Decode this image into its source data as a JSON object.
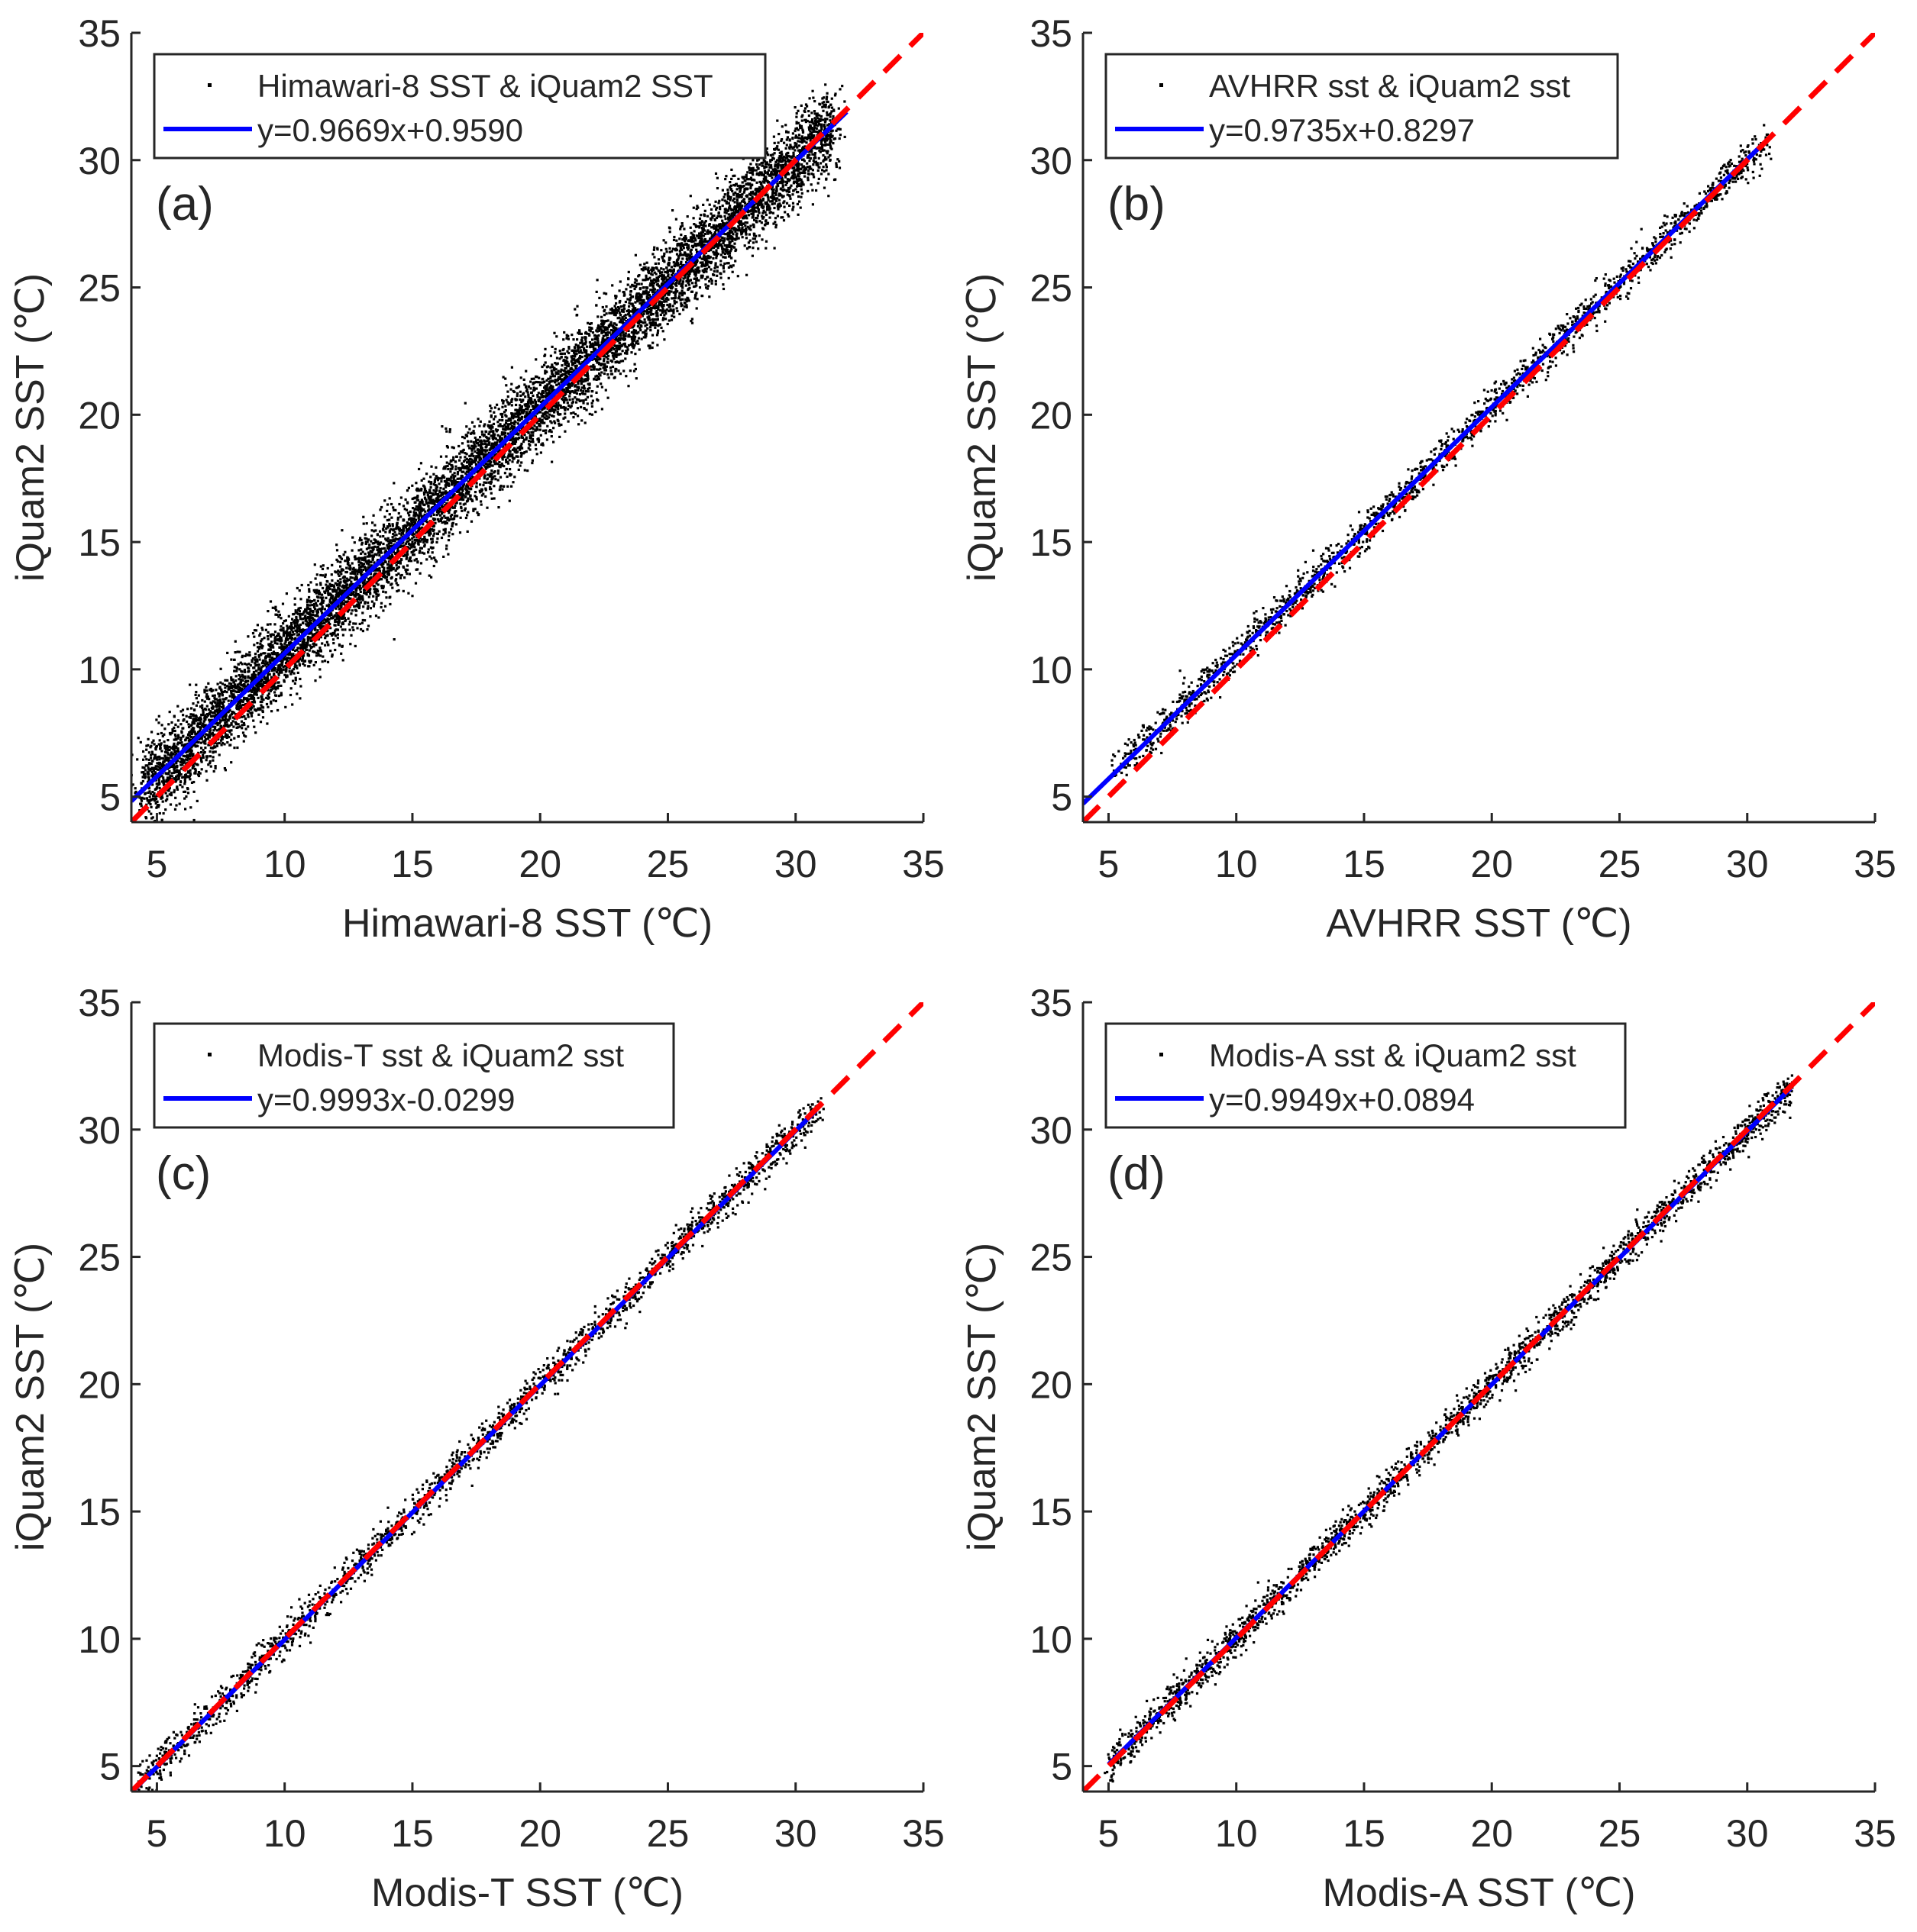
{
  "figure": {
    "description_text": "",
    "colors": {
      "points": "#000000",
      "fit_line": "#0000FF",
      "identity_line": "#FF0000",
      "axes": "#262626",
      "background": "#FFFFFF"
    }
  },
  "chart_data": [
    {
      "type": "scatter",
      "panel_label": "(a)",
      "xlabel": "Himawari-8 SST (℃)",
      "ylabel": "iQuam2 SST (℃)",
      "xlim": [
        4,
        35
      ],
      "ylim": [
        4,
        35
      ],
      "xticks": [
        5,
        10,
        15,
        20,
        25,
        30,
        35
      ],
      "yticks": [
        5,
        10,
        15,
        20,
        25,
        30,
        35
      ],
      "legend": {
        "position": "top-left",
        "scatter_entry": "Himawari-8 SST & iQuam2 SST",
        "fit_entry": "y=0.9669x+0.9590"
      },
      "fit": {
        "slope": 0.9669,
        "intercept": 0.959,
        "x_range": [
          4,
          32
        ]
      },
      "identity_line": {
        "x_range": [
          4,
          35
        ]
      },
      "points_summary": {
        "x_range": [
          4.5,
          31.5
        ],
        "approx_count": 9000,
        "spread": 0.8
      }
    },
    {
      "type": "scatter",
      "panel_label": "(b)",
      "xlabel": "AVHRR SST (℃)",
      "ylabel": "iQuam2 SST (℃)",
      "xlim": [
        4,
        35
      ],
      "ylim": [
        4,
        35
      ],
      "xticks": [
        5,
        10,
        15,
        20,
        25,
        30,
        35
      ],
      "yticks": [
        5,
        10,
        15,
        20,
        25,
        30,
        35
      ],
      "legend": {
        "position": "top-left",
        "scatter_entry": "AVHRR sst & iQuam2 sst",
        "fit_entry": "y=0.9735x+0.8297"
      },
      "fit": {
        "slope": 0.9735,
        "intercept": 0.8297,
        "x_range": [
          4,
          30.8
        ]
      },
      "identity_line": {
        "x_range": [
          4,
          35
        ]
      },
      "points_summary": {
        "x_range": [
          5.2,
          30.8
        ],
        "approx_count": 1800,
        "spread": 0.35
      }
    },
    {
      "type": "scatter",
      "panel_label": "(c)",
      "xlabel": "Modis-T SST (℃)",
      "ylabel": "iQuam2 SST (℃)",
      "xlim": [
        4,
        35
      ],
      "ylim": [
        4,
        35
      ],
      "xticks": [
        5,
        10,
        15,
        20,
        25,
        30,
        35
      ],
      "yticks": [
        5,
        10,
        15,
        20,
        25,
        30,
        35
      ],
      "legend": {
        "position": "top-left",
        "scatter_entry": "Modis-T sst & iQuam2 sst",
        "fit_entry": "y=0.9993x-0.0299"
      },
      "fit": {
        "slope": 0.9993,
        "intercept": -0.0299,
        "x_range": [
          4,
          30.8
        ]
      },
      "identity_line": {
        "x_range": [
          4,
          35
        ]
      },
      "points_summary": {
        "x_range": [
          4.3,
          31.0
        ],
        "approx_count": 1800,
        "spread": 0.35
      }
    },
    {
      "type": "scatter",
      "panel_label": "(d)",
      "xlabel": "Modis-A SST (℃)",
      "ylabel": "iQuam2 SST (℃)",
      "xlim": [
        4,
        35
      ],
      "ylim": [
        4,
        35
      ],
      "xticks": [
        5,
        10,
        15,
        20,
        25,
        30,
        35
      ],
      "yticks": [
        5,
        10,
        15,
        20,
        25,
        30,
        35
      ],
      "legend": {
        "position": "top-left",
        "scatter_entry": "Modis-A sst & iQuam2 sst",
        "fit_entry": "y=0.9949x+0.0894"
      },
      "fit": {
        "slope": 0.9949,
        "intercept": 0.0894,
        "x_range": [
          5,
          31.7
        ]
      },
      "identity_line": {
        "x_range": [
          4,
          35
        ]
      },
      "points_summary": {
        "x_range": [
          5.0,
          31.7
        ],
        "approx_count": 2200,
        "spread": 0.35
      }
    }
  ]
}
